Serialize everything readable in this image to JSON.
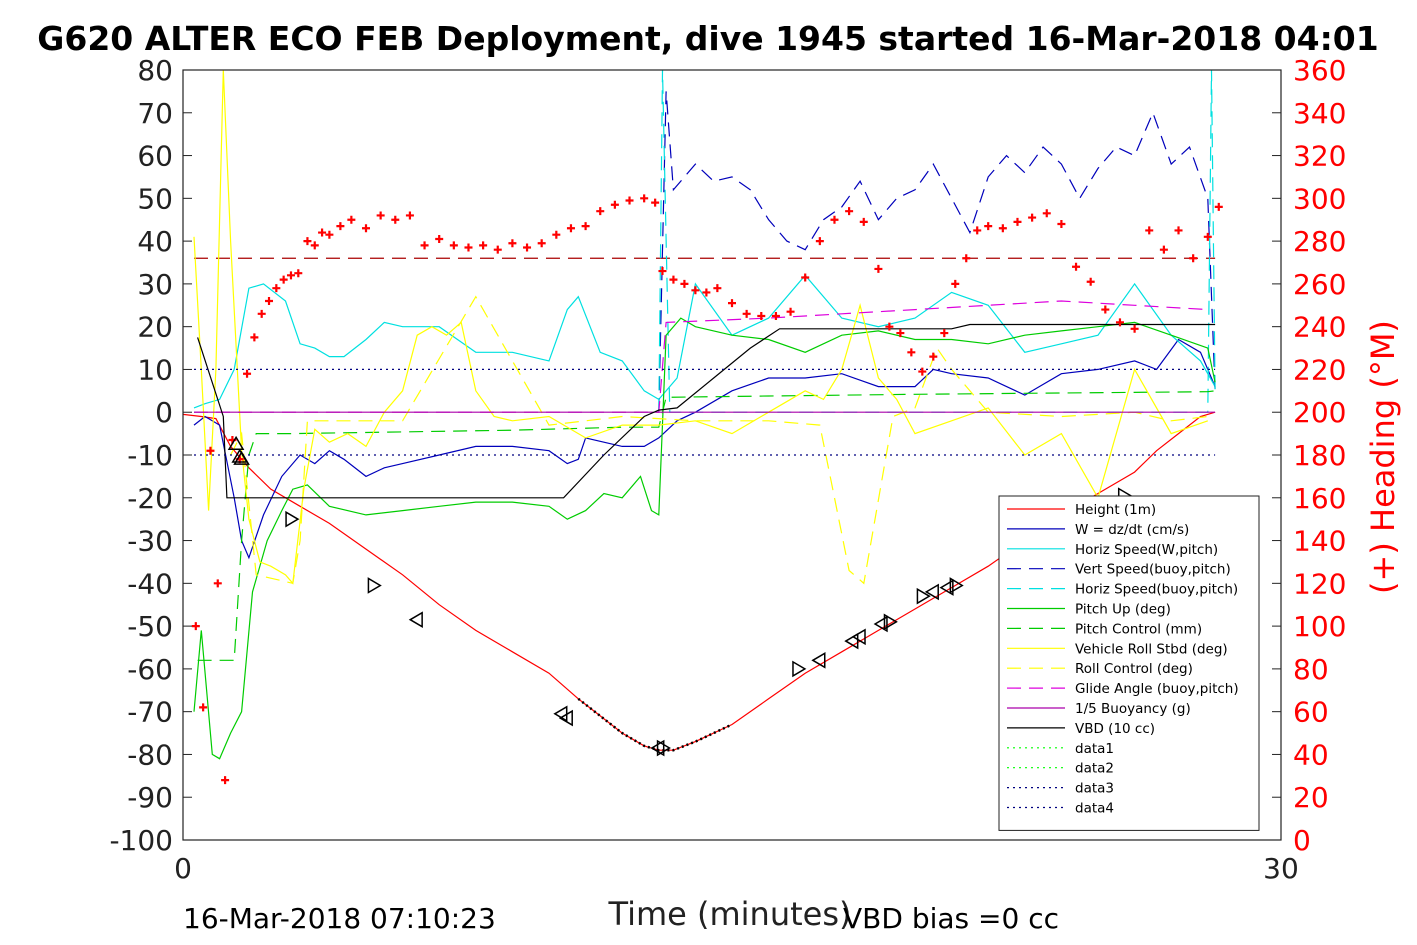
{
  "chart_data": {
    "type": "line",
    "title": "G620 ALTER ECO FEB Deployment, dive 1945 started 16-Mar-2018 04:01",
    "xlabel": "Time (minutes)",
    "ylabel_right": "(+) Heading (°M)",
    "xlim": [
      0,
      30
    ],
    "ylim": [
      -100,
      80
    ],
    "ylim_right": [
      0,
      360
    ],
    "x_ticks": [
      "0",
      "30"
    ],
    "y_ticks": [
      "80",
      "70",
      "60",
      "50",
      "40",
      "30",
      "20",
      "10",
      "0",
      "-10",
      "-20",
      "-30",
      "-40",
      "-50",
      "-60",
      "-70",
      "-80",
      "-90",
      "-100"
    ],
    "y_ticks_right": [
      "360",
      "340",
      "320",
      "300",
      "280",
      "260",
      "240",
      "220",
      "200",
      "180",
      "160",
      "140",
      "120",
      "100",
      "80",
      "60",
      "40",
      "20",
      "0"
    ],
    "grid": false,
    "legend_position": "bottom-right",
    "footer_left": "16-Mar-2018 07:10:23",
    "footer_right": "VBD bias =0 cc",
    "series": [
      {
        "name": "Height (1m)",
        "color": "#ff0000",
        "style": "solid",
        "x": [
          0,
          0.5,
          0.9,
          1.3,
          1.8,
          2.4,
          3.2,
          4.0,
          5.0,
          6.0,
          7.0,
          8.0,
          9.0,
          10.0,
          10.8,
          11.4,
          12.0,
          12.6,
          13.0,
          13.4,
          14.0,
          15.0,
          16.0,
          17.0,
          18.0,
          19.0,
          20.0,
          21.0,
          22.0,
          23.0,
          24.0,
          25.0,
          26.0,
          26.6,
          27.2,
          27.8,
          28.2
        ],
        "y": [
          -0.5,
          -1.0,
          -1.5,
          -8,
          -13,
          -18,
          -22,
          -26,
          -32,
          -38,
          -45,
          -51,
          -56,
          -61,
          -67,
          -71,
          -75,
          -78,
          -79,
          -79,
          -77,
          -73,
          -67,
          -61,
          -56,
          -51,
          -46,
          -41,
          -36,
          -30,
          -24,
          -19,
          -14,
          -9,
          -5,
          -1,
          0
        ]
      },
      {
        "name": "W = dz/dt (cm/s)",
        "color": "#0000bb",
        "style": "solid",
        "x": [
          0.3,
          0.6,
          1.0,
          1.4,
          1.6,
          1.8,
          2.2,
          2.7,
          3.2,
          3.6,
          4.0,
          4.4,
          5.0,
          5.5,
          6.0,
          7.0,
          8.0,
          9.0,
          10.0,
          10.5,
          10.8,
          11.0,
          11.5,
          12.0,
          12.6,
          13.0,
          13.5,
          14.0,
          15.0,
          16.0,
          17.0,
          18.0,
          19.0,
          20.0,
          20.5,
          21.0,
          22.0,
          23.0,
          24.0,
          25.0,
          26.0,
          26.6,
          27.2,
          27.8,
          28.2
        ],
        "y": [
          -3,
          -1,
          -3,
          -20,
          -30,
          -34,
          -24,
          -15,
          -10,
          -12,
          -9,
          -11,
          -15,
          -13,
          -12,
          -10,
          -8,
          -8,
          -9,
          -12,
          -11,
          -6,
          -7,
          -8,
          -8,
          -6,
          -2,
          0,
          5,
          8,
          8,
          9,
          6,
          6,
          10,
          9,
          8,
          4,
          9,
          10,
          12,
          10,
          17,
          14,
          6
        ]
      },
      {
        "name": "Horiz Speed(W,pitch)",
        "color": "#00e0e0",
        "style": "solid",
        "x": [
          0.3,
          0.6,
          1.0,
          1.4,
          1.8,
          2.2,
          2.8,
          3.2,
          3.6,
          4.0,
          4.4,
          5.0,
          5.5,
          6.0,
          7.0,
          8.0,
          9.0,
          10.0,
          10.5,
          10.8,
          11.4,
          12.0,
          12.6,
          13.0,
          13.5,
          14.0,
          15.0,
          16.0,
          17.0,
          18.0,
          19.0,
          20.0,
          21.0,
          22.0,
          23.0,
          24.0,
          25.0,
          26.0,
          27.0,
          27.8,
          28.2
        ],
        "y": [
          1,
          2,
          3,
          10,
          29,
          30,
          26,
          16,
          15,
          13,
          13,
          17,
          21,
          20,
          20,
          14,
          14,
          12,
          24,
          27,
          14,
          12,
          5,
          3,
          8,
          30,
          18,
          22,
          32,
          22,
          20,
          22,
          28,
          25,
          14,
          16,
          18,
          30,
          18,
          12,
          6
        ]
      },
      {
        "name": "Vert Speed(buoy,pitch)",
        "color": "#0000bb",
        "style": "dashed",
        "x": [
          13.0,
          13.2,
          13.4,
          14.0,
          14.5,
          15.0,
          15.5,
          16.0,
          16.5,
          17.0,
          17.5,
          18.0,
          18.5,
          19.0,
          19.5,
          20.0,
          20.5,
          21.0,
          21.5,
          22.0,
          22.5,
          23.0,
          23.5,
          24.0,
          24.5,
          25.0,
          25.5,
          26.0,
          26.5,
          27.0,
          27.5,
          28.0,
          28.2
        ],
        "y": [
          0,
          75,
          52,
          58,
          54,
          55,
          52,
          45,
          40,
          38,
          45,
          48,
          54,
          45,
          50,
          52,
          58,
          50,
          42,
          55,
          60,
          56,
          62,
          58,
          50,
          57,
          62,
          60,
          70,
          58,
          62,
          50,
          5
        ]
      },
      {
        "name": "Horiz Speed(buoy,pitch)",
        "color": "#00e0e0",
        "style": "dashed",
        "x": [
          13.0,
          13.1,
          13.3,
          28.0,
          28.1,
          28.2
        ],
        "y": [
          0,
          80,
          0,
          0,
          80,
          5
        ]
      },
      {
        "name": "Pitch Up (deg)",
        "color": "#00cc00",
        "style": "solid",
        "x": [
          0.3,
          0.5,
          0.8,
          1.0,
          1.3,
          1.6,
          1.9,
          2.3,
          2.7,
          3.0,
          3.4,
          4.0,
          5.0,
          6.0,
          7.0,
          8.0,
          9.0,
          10.0,
          10.5,
          11.0,
          11.5,
          12.0,
          12.5,
          12.8,
          13.0,
          13.2,
          13.6,
          14.0,
          15.0,
          16.0,
          17.0,
          18.0,
          19.0,
          20.0,
          21.0,
          22.0,
          23.0,
          24.0,
          25.0,
          26.0,
          27.0,
          28.0,
          28.2
        ],
        "y": [
          -70,
          -51,
          -80,
          -81,
          -75,
          -70,
          -42,
          -30,
          -23,
          -18,
          -17,
          -22,
          -24,
          -23,
          -22,
          -21,
          -21,
          -22,
          -25,
          -23,
          -19,
          -20,
          -15,
          -23,
          -24,
          18,
          22,
          20,
          18,
          17,
          14,
          18,
          19,
          17,
          17,
          16,
          18,
          19,
          20,
          21,
          18,
          15,
          7
        ]
      },
      {
        "name": "Pitch Control (mm)",
        "color": "#00cc00",
        "style": "dashed",
        "x": [
          0.4,
          1.0,
          1.4,
          1.6,
          1.8,
          2.0,
          3.0,
          6.0,
          9.0,
          12.0,
          13.0,
          13.2,
          16.0,
          20.0,
          24.0,
          28.0,
          28.2
        ],
        "y": [
          -58,
          -58,
          -58,
          -30,
          -10,
          -5,
          -5,
          -4.6,
          -4.2,
          -3.5,
          -3.5,
          3.5,
          3.8,
          4.2,
          4.5,
          4.8,
          5
        ]
      },
      {
        "name": "Vehicle Roll Stbd (deg)",
        "color": "#ffff00",
        "style": "solid",
        "x": [
          0.3,
          0.5,
          0.7,
          0.9,
          1.1,
          1.3,
          1.6,
          1.8,
          2.1,
          2.4,
          2.8,
          3.0,
          3.3,
          3.6,
          4.0,
          4.5,
          5.0,
          5.5,
          6.0,
          6.4,
          6.8,
          7.2,
          7.6,
          8.0,
          8.5,
          9.0,
          10.0,
          11.0,
          12.0,
          13.0,
          14.0,
          15.0,
          16.0,
          17.0,
          17.5,
          18.0,
          18.5,
          19.0,
          19.5,
          20.0,
          21.0,
          22.0,
          23.0,
          24.0,
          25.0,
          26.0,
          27.0,
          28.0
        ],
        "y": [
          41,
          10,
          -23,
          10,
          80,
          40,
          -9,
          -25,
          -35,
          -36,
          -38,
          -40,
          -18,
          -4,
          -7,
          -5,
          -8,
          0,
          5,
          18,
          20,
          18,
          21,
          5,
          -1,
          -2,
          -1,
          -6,
          -3,
          -3,
          -2,
          -5,
          0,
          5,
          3,
          10,
          25,
          8,
          3,
          -5,
          -2,
          1,
          -10,
          -5,
          -20,
          10,
          -5,
          -2
        ]
      },
      {
        "name": "Roll Control (deg)",
        "color": "#ffff00",
        "style": "dashed",
        "x": [
          1.3,
          1.6,
          2.0,
          3.0,
          3.2,
          3.4,
          6.0,
          8.0,
          10.0,
          12.0,
          14.0,
          16.0,
          17.4,
          17.8,
          18.2,
          18.6,
          19.4,
          20.0,
          20.6,
          21.0,
          22.0,
          24.0,
          26.0,
          27.0,
          28.0
        ],
        "y": [
          -10,
          -5,
          -38,
          -40,
          -30,
          -2,
          -2,
          27,
          -3,
          -1,
          -2,
          -2,
          -3,
          -20,
          -37,
          -40,
          -1,
          1,
          15,
          10,
          0,
          -1,
          0,
          -2,
          -1
        ]
      },
      {
        "name": "Glide Angle (buoy,pitch)",
        "color": "#dd00dd",
        "style": "dashed",
        "x": [
          0.3,
          13.0,
          13.2,
          16.0,
          18.0,
          20.0,
          22.0,
          24.0,
          26.0,
          28.0
        ],
        "y": [
          0,
          0,
          21,
          22,
          23,
          24,
          25,
          26,
          25,
          24
        ]
      },
      {
        "name": "1/5 Buoyancy (g)",
        "color": "#aa00aa",
        "style": "solid",
        "x": [
          0.3,
          13.0,
          13.2,
          28.2
        ],
        "y": [
          0,
          0,
          0,
          0
        ]
      },
      {
        "name": "VBD (10 cc)",
        "color": "#000000",
        "style": "solid",
        "x": [
          0.4,
          1.1,
          1.2,
          10.4,
          11.5,
          12.6,
          13.0,
          13.5,
          14.5,
          15.5,
          16.3,
          19.0,
          21.0,
          21.5,
          24.0,
          26.0,
          28.2
        ],
        "y": [
          17.5,
          -1,
          -20,
          -20,
          -10,
          -1,
          0.5,
          1,
          8,
          15,
          19.5,
          19.5,
          19.5,
          20.5,
          20.5,
          20.5,
          20.5
        ]
      },
      {
        "name": "data1",
        "color": "#00ff00",
        "style": "dotted",
        "x": [],
        "y": []
      },
      {
        "name": "data2",
        "color": "#00ff00",
        "style": "dotted",
        "x": [],
        "y": []
      },
      {
        "name": "data3",
        "color": "#000080",
        "style": "dotted",
        "x": [
          0.3,
          28.2
        ],
        "y": [
          10,
          10
        ]
      },
      {
        "name": "data4",
        "color": "#000080",
        "style": "dotted",
        "x": [
          0.3,
          28.2
        ],
        "y": [
          -10,
          -10
        ]
      }
    ],
    "heading_reference": {
      "color": "#aa0000",
      "value": 272
    },
    "heading_points": {
      "color": "#ff0000",
      "x": [
        0.35,
        0.55,
        0.75,
        0.95,
        1.15,
        1.35,
        1.55,
        1.75,
        1.95,
        2.15,
        2.35,
        2.55,
        2.75,
        2.95,
        3.15,
        3.4,
        3.6,
        3.8,
        4.0,
        4.3,
        4.6,
        5.0,
        5.4,
        5.8,
        6.2,
        6.6,
        7.0,
        7.4,
        7.8,
        8.2,
        8.6,
        9.0,
        9.4,
        9.8,
        10.2,
        10.6,
        11.0,
        11.4,
        11.8,
        12.2,
        12.6,
        12.9,
        13.1,
        13.4,
        13.7,
        14.0,
        14.3,
        14.6,
        15.0,
        15.4,
        15.8,
        16.2,
        16.6,
        17.0,
        17.4,
        17.8,
        18.2,
        18.6,
        19.0,
        19.3,
        19.6,
        19.9,
        20.2,
        20.5,
        20.8,
        21.1,
        21.4,
        21.7,
        22.0,
        22.4,
        22.8,
        23.2,
        23.6,
        24.0,
        24.4,
        24.8,
        25.2,
        25.6,
        26.0,
        26.4,
        26.8,
        27.2,
        27.6,
        28.0,
        28.3
      ],
      "y": [
        100,
        62,
        182,
        120,
        28,
        187,
        178,
        218,
        235,
        246,
        252,
        258,
        262,
        264,
        265,
        280,
        278,
        284,
        283,
        287,
        290,
        286,
        292,
        290,
        292,
        278,
        281,
        278,
        277,
        278,
        276,
        279,
        277,
        279,
        283,
        286,
        287,
        294,
        297,
        299,
        300,
        298,
        266,
        262,
        260,
        257,
        256,
        258,
        251,
        246,
        245,
        245,
        247,
        263,
        280,
        290,
        294,
        289,
        267,
        240,
        237,
        228,
        219,
        226,
        237,
        260,
        272,
        285,
        287,
        286,
        289,
        291,
        293,
        288,
        268,
        261,
        248,
        242,
        239,
        285,
        276,
        285,
        272,
        282,
        296
      ]
    },
    "markers": [
      {
        "x": 1.45,
        "y": -7.5,
        "shape": "up"
      },
      {
        "x": 1.55,
        "y": -10.5,
        "shape": "up"
      },
      {
        "x": 1.6,
        "y": -11,
        "shape": "up"
      },
      {
        "x": 2.95,
        "y": -25,
        "shape": "right"
      },
      {
        "x": 5.2,
        "y": -40.5,
        "shape": "right"
      },
      {
        "x": 6.4,
        "y": -48.5,
        "shape": "left"
      },
      {
        "x": 10.35,
        "y": -70.5,
        "shape": "left"
      },
      {
        "x": 10.5,
        "y": -71.5,
        "shape": "left"
      },
      {
        "x": 13.0,
        "y": -78.5,
        "shape": "left"
      },
      {
        "x": 13.1,
        "y": -78.5,
        "shape": "right"
      },
      {
        "x": 16.8,
        "y": -60,
        "shape": "right"
      },
      {
        "x": 17.4,
        "y": -58,
        "shape": "left"
      },
      {
        "x": 18.3,
        "y": -53.5,
        "shape": "left"
      },
      {
        "x": 18.5,
        "y": -52.5,
        "shape": "left"
      },
      {
        "x": 19.1,
        "y": -49.5,
        "shape": "left"
      },
      {
        "x": 19.3,
        "y": -49,
        "shape": "right"
      },
      {
        "x": 20.2,
        "y": -43,
        "shape": "right"
      },
      {
        "x": 20.5,
        "y": -42,
        "shape": "left"
      },
      {
        "x": 20.9,
        "y": -41,
        "shape": "left"
      },
      {
        "x": 21.1,
        "y": -40.5,
        "shape": "right"
      },
      {
        "x": 25.7,
        "y": -19.5,
        "shape": "right"
      }
    ]
  }
}
